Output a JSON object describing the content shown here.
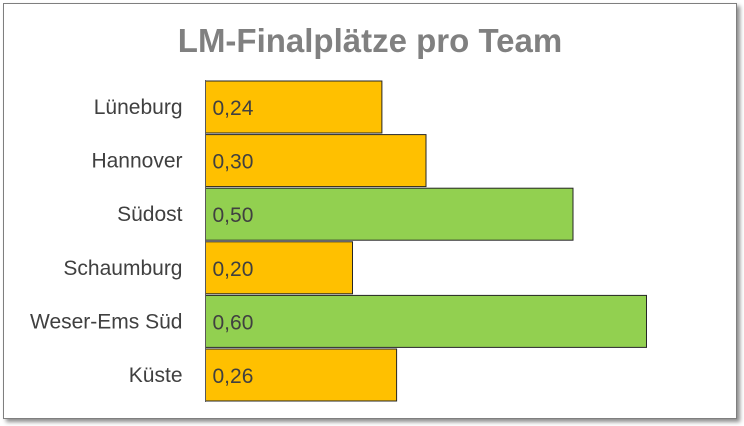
{
  "chart_data": {
    "type": "bar",
    "orientation": "horizontal",
    "title": "LM-Finalplätze pro Team",
    "categories": [
      "Lüneburg",
      "Hannover",
      "Südost",
      "Schaumburg",
      "Weser-Ems Süd",
      "Küste"
    ],
    "values": [
      0.24,
      0.3,
      0.5,
      0.2,
      0.6,
      0.26
    ],
    "data_labels": [
      "0,24",
      "0,30",
      "0,50",
      "0,20",
      "0,60",
      "0,26"
    ],
    "bar_colors": [
      "#ffc000",
      "#ffc000",
      "#92d050",
      "#ffc000",
      "#92d050",
      "#ffc000"
    ],
    "xlim": [
      0,
      0.7
    ],
    "grid": false,
    "legend": "none"
  }
}
